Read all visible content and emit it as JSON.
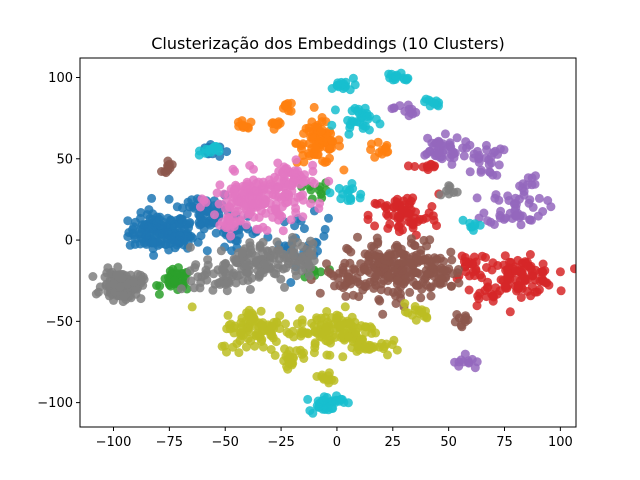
{
  "chart_data": {
    "type": "scatter",
    "title": "Clusterização dos Embeddings (10 Clusters)",
    "xlabel": "",
    "ylabel": "",
    "xlim": [
      -115,
      107
    ],
    "ylim": [
      -115,
      112
    ],
    "xticks": [
      -100,
      -75,
      -50,
      -25,
      0,
      25,
      50,
      75,
      100
    ],
    "yticks": [
      -100,
      -50,
      0,
      50,
      100
    ],
    "grid": false,
    "legend": "none",
    "series": [
      {
        "color": "#1f77b4",
        "blobs": [
          {
            "cx": -80,
            "cy": 5,
            "rx": 12,
            "ry": 10,
            "n": 120
          },
          {
            "cx": -60,
            "cy": 18,
            "rx": 12,
            "ry": 12,
            "n": 70
          },
          {
            "cx": -70,
            "cy": 0,
            "rx": 8,
            "ry": 6,
            "n": 30
          },
          {
            "cx": -57,
            "cy": 55,
            "rx": 5,
            "ry": 4,
            "n": 15
          },
          {
            "cx": -15,
            "cy": 0,
            "rx": 10,
            "ry": 14,
            "n": 30
          },
          {
            "cx": -45,
            "cy": 5,
            "rx": 10,
            "ry": 8,
            "n": 25
          }
        ]
      },
      {
        "color": "#ff7f0e",
        "blobs": [
          {
            "cx": -8,
            "cy": 60,
            "rx": 9,
            "ry": 12,
            "n": 80
          },
          {
            "cx": -22,
            "cy": 82,
            "rx": 3,
            "ry": 3,
            "n": 10
          },
          {
            "cx": -42,
            "cy": 70,
            "rx": 4,
            "ry": 3,
            "n": 10
          },
          {
            "cx": -28,
            "cy": 70,
            "rx": 3,
            "ry": 4,
            "n": 8
          },
          {
            "cx": 20,
            "cy": 55,
            "rx": 6,
            "ry": 5,
            "n": 12
          }
        ]
      },
      {
        "color": "#2ca02c",
        "blobs": [
          {
            "cx": -72,
            "cy": -25,
            "rx": 6,
            "ry": 6,
            "n": 40
          },
          {
            "cx": -10,
            "cy": -20,
            "rx": 5,
            "ry": 5,
            "n": 10
          },
          {
            "cx": -8,
            "cy": 30,
            "rx": 5,
            "ry": 5,
            "n": 10
          }
        ]
      },
      {
        "color": "#d62728",
        "blobs": [
          {
            "cx": 82,
            "cy": -22,
            "rx": 14,
            "ry": 10,
            "n": 100
          },
          {
            "cx": 30,
            "cy": 15,
            "rx": 14,
            "ry": 12,
            "n": 70
          },
          {
            "cx": 60,
            "cy": -15,
            "rx": 8,
            "ry": 10,
            "n": 25
          },
          {
            "cx": 68,
            "cy": -35,
            "rx": 8,
            "ry": 6,
            "n": 12
          },
          {
            "cx": 40,
            "cy": 45,
            "rx": 5,
            "ry": 5,
            "n": 10
          }
        ]
      },
      {
        "color": "#9467bd",
        "blobs": [
          {
            "cx": 80,
            "cy": 20,
            "rx": 12,
            "ry": 10,
            "n": 45
          },
          {
            "cx": 45,
            "cy": 55,
            "rx": 10,
            "ry": 8,
            "n": 40
          },
          {
            "cx": 65,
            "cy": 50,
            "rx": 8,
            "ry": 10,
            "n": 30
          },
          {
            "cx": 58,
            "cy": -75,
            "rx": 5,
            "ry": 5,
            "n": 12
          },
          {
            "cx": 30,
            "cy": 80,
            "rx": 5,
            "ry": 4,
            "n": 12
          },
          {
            "cx": 85,
            "cy": 35,
            "rx": 5,
            "ry": 6,
            "n": 10
          }
        ]
      },
      {
        "color": "#8c564b",
        "blobs": [
          {
            "cx": 25,
            "cy": -18,
            "rx": 18,
            "ry": 16,
            "n": 180
          },
          {
            "cx": 45,
            "cy": -20,
            "rx": 10,
            "ry": 10,
            "n": 50
          },
          {
            "cx": 5,
            "cy": -25,
            "rx": 8,
            "ry": 8,
            "n": 30
          },
          {
            "cx": -75,
            "cy": 45,
            "rx": 3,
            "ry": 3,
            "n": 10
          },
          {
            "cx": 55,
            "cy": -50,
            "rx": 4,
            "ry": 4,
            "n": 10
          }
        ]
      },
      {
        "color": "#e377c2",
        "blobs": [
          {
            "cx": -35,
            "cy": 25,
            "rx": 18,
            "ry": 14,
            "n": 180
          },
          {
            "cx": -20,
            "cy": 38,
            "rx": 10,
            "ry": 8,
            "n": 40
          },
          {
            "cx": -48,
            "cy": 10,
            "rx": 6,
            "ry": 6,
            "n": 15
          }
        ]
      },
      {
        "color": "#7f7f7f",
        "blobs": [
          {
            "cx": -96,
            "cy": -28,
            "rx": 8,
            "ry": 8,
            "n": 120
          },
          {
            "cx": -40,
            "cy": -15,
            "rx": 18,
            "ry": 12,
            "n": 120
          },
          {
            "cx": -15,
            "cy": -10,
            "rx": 10,
            "ry": 10,
            "n": 30
          },
          {
            "cx": -55,
            "cy": -25,
            "rx": 8,
            "ry": 6,
            "n": 25
          },
          {
            "cx": 50,
            "cy": 30,
            "rx": 4,
            "ry": 4,
            "n": 8
          }
        ]
      },
      {
        "color": "#bcbd22",
        "blobs": [
          {
            "cx": 0,
            "cy": -55,
            "rx": 16,
            "ry": 12,
            "n": 110
          },
          {
            "cx": -35,
            "cy": -55,
            "rx": 16,
            "ry": 12,
            "n": 90
          },
          {
            "cx": 15,
            "cy": -65,
            "rx": 8,
            "ry": 6,
            "n": 25
          },
          {
            "cx": -20,
            "cy": -72,
            "rx": 6,
            "ry": 5,
            "n": 20
          },
          {
            "cx": 35,
            "cy": -45,
            "rx": 6,
            "ry": 5,
            "n": 15
          },
          {
            "cx": -5,
            "cy": -85,
            "rx": 5,
            "ry": 4,
            "n": 12
          }
        ]
      },
      {
        "color": "#17becf",
        "blobs": [
          {
            "cx": -5,
            "cy": -100,
            "rx": 7,
            "ry": 5,
            "n": 40
          },
          {
            "cx": 10,
            "cy": 75,
            "rx": 8,
            "ry": 6,
            "n": 30
          },
          {
            "cx": 28,
            "cy": 100,
            "rx": 5,
            "ry": 3,
            "n": 15
          },
          {
            "cx": 3,
            "cy": 95,
            "rx": 5,
            "ry": 3,
            "n": 15
          },
          {
            "cx": 42,
            "cy": 85,
            "rx": 5,
            "ry": 3,
            "n": 10
          },
          {
            "cx": -55,
            "cy": 55,
            "rx": 6,
            "ry": 3,
            "n": 12
          },
          {
            "cx": 5,
            "cy": 28,
            "rx": 6,
            "ry": 6,
            "n": 15
          },
          {
            "cx": 60,
            "cy": 10,
            "rx": 4,
            "ry": 4,
            "n": 8
          }
        ]
      }
    ]
  }
}
